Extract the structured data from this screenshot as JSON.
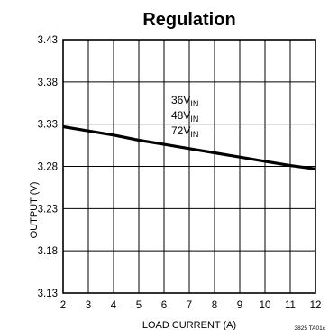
{
  "chart_data": {
    "type": "line",
    "title": "Regulation",
    "xlabel": "LOAD CURRENT (A)",
    "ylabel": "OUTPUT (V)",
    "xlim": [
      2,
      12
    ],
    "ylim": [
      3.13,
      3.43
    ],
    "x_ticks": [
      "2",
      "3",
      "4",
      "5",
      "6",
      "7",
      "8",
      "9",
      "10",
      "11",
      "12"
    ],
    "y_ticks": [
      "3.13",
      "3.18",
      "3.23",
      "3.28",
      "3.33",
      "3.38",
      "3.43"
    ],
    "grid": true,
    "series": [
      {
        "x": [
          2,
          3,
          4,
          5,
          6,
          7,
          8,
          9,
          10,
          11,
          12
        ],
        "y": [
          3.327,
          3.322,
          3.317,
          3.311,
          3.306,
          3.301,
          3.296,
          3.291,
          3.286,
          3.281,
          3.277
        ]
      }
    ],
    "annotations": [
      {
        "base": "36V",
        "sub": "IN"
      },
      {
        "base": "48V",
        "sub": "IN"
      },
      {
        "base": "72V",
        "sub": "IN"
      }
    ],
    "figure_id": "3825 TA01c"
  }
}
